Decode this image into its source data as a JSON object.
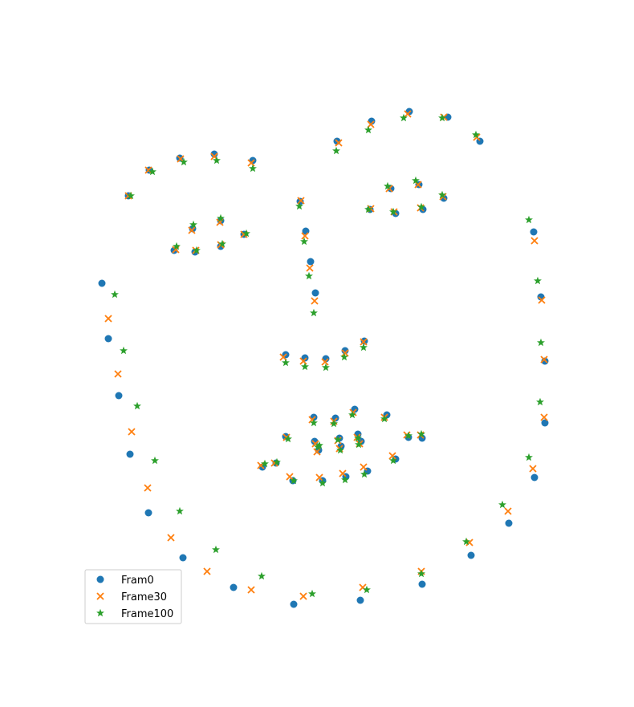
{
  "chart_data": {
    "type": "scatter",
    "title": "",
    "xlabel": "",
    "ylabel": "",
    "grid": false,
    "axes_visible": false,
    "legend": {
      "placement": "lower-left"
    },
    "xlim": [
      120,
      690
    ],
    "ylim": [
      130,
      760
    ],
    "series": [
      {
        "name": "Fram0",
        "marker": "circle",
        "color": "#1f77b4",
        "points": [
          [
            510,
            139
          ],
          [
            558,
            146
          ],
          [
            463,
            151
          ],
          [
            598,
            176
          ],
          [
            420,
            176
          ],
          [
            315,
            200
          ],
          [
            267,
            192
          ],
          [
            224,
            197
          ],
          [
            186,
            212
          ],
          [
            160,
            244
          ],
          [
            374,
            251
          ],
          [
            487,
            235
          ],
          [
            522,
            230
          ],
          [
            553,
            247
          ],
          [
            527,
            261
          ],
          [
            461,
            261
          ],
          [
            493,
            266
          ],
          [
            665,
            289
          ],
          [
            381,
            288
          ],
          [
            275,
            275
          ],
          [
            240,
            285
          ],
          [
            304,
            292
          ],
          [
            275,
            307
          ],
          [
            217,
            312
          ],
          [
            243,
            314
          ],
          [
            387,
            326
          ],
          [
            127,
            353
          ],
          [
            393,
            365
          ],
          [
            674,
            370
          ],
          [
            135,
            422
          ],
          [
            454,
            425
          ],
          [
            430,
            437
          ],
          [
            356,
            442
          ],
          [
            380,
            446
          ],
          [
            406,
            447
          ],
          [
            679,
            450
          ],
          [
            148,
            493
          ],
          [
            442,
            510
          ],
          [
            482,
            517
          ],
          [
            391,
            520
          ],
          [
            418,
            521
          ],
          [
            679,
            527
          ],
          [
            446,
            541
          ],
          [
            356,
            544
          ],
          [
            509,
            545
          ],
          [
            526,
            546
          ],
          [
            423,
            546
          ],
          [
            392,
            550
          ],
          [
            450,
            550
          ],
          [
            397,
            561
          ],
          [
            425,
            556
          ],
          [
            162,
            566
          ],
          [
            493,
            572
          ],
          [
            344,
            577
          ],
          [
            327,
            582
          ],
          [
            458,
            587
          ],
          [
            431,
            594
          ],
          [
            365,
            599
          ],
          [
            402,
            599
          ],
          [
            666,
            595
          ],
          [
            185,
            639
          ],
          [
            634,
            652
          ],
          [
            587,
            692
          ],
          [
            228,
            695
          ],
          [
            526,
            728
          ],
          [
            291,
            732
          ],
          [
            449,
            748
          ],
          [
            366,
            753
          ]
        ]
      },
      {
        "name": "Frame30",
        "marker": "x",
        "color": "#ff7f0e",
        "points": [
          [
            508,
            142
          ],
          [
            553,
            146
          ],
          [
            462,
            155
          ],
          [
            594,
            171
          ],
          [
            422,
            178
          ],
          [
            313,
            203
          ],
          [
            267,
            195
          ],
          [
            225,
            198
          ],
          [
            185,
            212
          ],
          [
            160,
            244
          ],
          [
            375,
            250
          ],
          [
            485,
            235
          ],
          [
            521,
            230
          ],
          [
            552,
            245
          ],
          [
            524,
            259
          ],
          [
            462,
            260
          ],
          [
            491,
            264
          ],
          [
            666,
            300
          ],
          [
            380,
            294
          ],
          [
            274,
            277
          ],
          [
            239,
            287
          ],
          [
            304,
            292
          ],
          [
            275,
            305
          ],
          [
            219,
            311
          ],
          [
            244,
            312
          ],
          [
            386,
            334
          ],
          [
            135,
            397
          ],
          [
            392,
            375
          ],
          [
            675,
            374
          ],
          [
            147,
            466
          ],
          [
            453,
            426
          ],
          [
            430,
            440
          ],
          [
            353,
            445
          ],
          [
            378,
            450
          ],
          [
            405,
            451
          ],
          [
            678,
            448
          ],
          [
            164,
            538
          ],
          [
            440,
            514
          ],
          [
            479,
            520
          ],
          [
            389,
            523
          ],
          [
            416,
            525
          ],
          [
            678,
            520
          ],
          [
            445,
            545
          ],
          [
            357,
            545
          ],
          [
            507,
            542
          ],
          [
            524,
            542
          ],
          [
            421,
            549
          ],
          [
            393,
            553
          ],
          [
            448,
            553
          ],
          [
            395,
            563
          ],
          [
            423,
            559
          ],
          [
            184,
            608
          ],
          [
            489,
            568
          ],
          [
            342,
            577
          ],
          [
            325,
            580
          ],
          [
            453,
            582
          ],
          [
            427,
            590
          ],
          [
            361,
            594
          ],
          [
            398,
            595
          ],
          [
            664,
            584
          ],
          [
            213,
            670
          ],
          [
            633,
            637
          ],
          [
            585,
            676
          ],
          [
            258,
            712
          ],
          [
            525,
            712
          ],
          [
            313,
            735
          ],
          [
            452,
            732
          ],
          [
            378,
            743
          ]
        ]
      },
      {
        "name": "Frame100",
        "marker": "star",
        "color": "#2ca02c",
        "points": [
          [
            503,
            147
          ],
          [
            551,
            147
          ],
          [
            459,
            162
          ],
          [
            593,
            168
          ],
          [
            419,
            188
          ],
          [
            315,
            210
          ],
          [
            270,
            200
          ],
          [
            229,
            202
          ],
          [
            190,
            214
          ],
          [
            163,
            244
          ],
          [
            373,
            257
          ],
          [
            483,
            232
          ],
          [
            518,
            225
          ],
          [
            551,
            243
          ],
          [
            525,
            258
          ],
          [
            459,
            261
          ],
          [
            490,
            264
          ],
          [
            659,
            274
          ],
          [
            379,
            301
          ],
          [
            275,
            272
          ],
          [
            241,
            280
          ],
          [
            307,
            291
          ],
          [
            277,
            304
          ],
          [
            220,
            307
          ],
          [
            245,
            312
          ],
          [
            385,
            344
          ],
          [
            143,
            367
          ],
          [
            391,
            390
          ],
          [
            670,
            350
          ],
          [
            154,
            437
          ],
          [
            453,
            433
          ],
          [
            429,
            445
          ],
          [
            356,
            452
          ],
          [
            380,
            457
          ],
          [
            406,
            458
          ],
          [
            674,
            427
          ],
          [
            171,
            506
          ],
          [
            439,
            517
          ],
          [
            479,
            522
          ],
          [
            391,
            527
          ],
          [
            416,
            528
          ],
          [
            673,
            501
          ],
          [
            447,
            554
          ],
          [
            359,
            547
          ],
          [
            509,
            543
          ],
          [
            525,
            541
          ],
          [
            424,
            561
          ],
          [
            396,
            557
          ],
          [
            446,
            546
          ],
          [
            398,
            555
          ],
          [
            421,
            548
          ],
          [
            193,
            574
          ],
          [
            490,
            574
          ],
          [
            345,
            576
          ],
          [
            330,
            578
          ],
          [
            454,
            591
          ],
          [
            430,
            598
          ],
          [
            366,
            599
          ],
          [
            402,
            602
          ],
          [
            659,
            570
          ],
          [
            224,
            637
          ],
          [
            626,
            629
          ],
          [
            581,
            675
          ],
          [
            269,
            685
          ],
          [
            525,
            715
          ],
          [
            326,
            718
          ],
          [
            457,
            735
          ],
          [
            389,
            740
          ]
        ]
      }
    ]
  }
}
